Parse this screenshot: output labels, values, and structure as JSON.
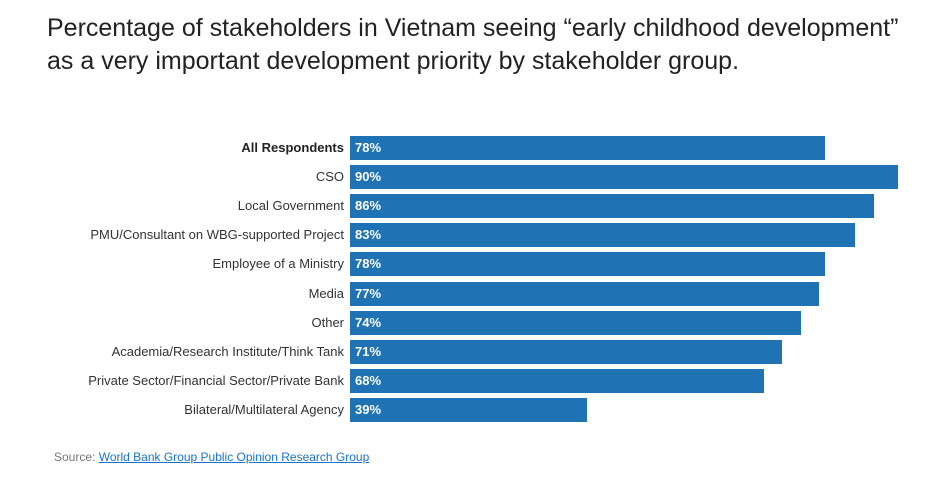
{
  "chart_data": {
    "type": "bar",
    "orientation": "horizontal",
    "title": "Percentage of stakeholders in Vietnam seeing “early childhood development” as a very important development priority by stakeholder group.",
    "categories": [
      "All Respondents",
      "CSO",
      "Local Government",
      "PMU/Consultant on WBG-supported Project",
      "Employee of a Ministry",
      "Media",
      "Other",
      "Academia/Research Institute/Think Tank",
      "Private Sector/Financial Sector/Private Bank",
      "Bilateral/Multilateral Agency"
    ],
    "values": [
      78,
      90,
      86,
      83,
      78,
      77,
      74,
      71,
      68,
      39
    ],
    "value_labels": [
      "78%",
      "90%",
      "86%",
      "83%",
      "78%",
      "77%",
      "74%",
      "71%",
      "68%",
      "39%"
    ],
    "unit": "%",
    "xlim": [
      0,
      100
    ],
    "grid": false,
    "bar_color": "#1f72b4"
  },
  "source": {
    "prefix": "Source:",
    "link_text": "World Bank Group Public Opinion Research Group"
  }
}
